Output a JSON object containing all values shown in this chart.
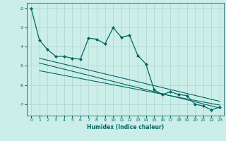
{
  "xlabel": "Humidex (Indice chaleur)",
  "background_color": "#cceee8",
  "grid_color": "#aad4ce",
  "line_color": "#006666",
  "xlim": [
    -0.5,
    23.5
  ],
  "ylim": [
    -7.6,
    -1.7
  ],
  "yticks": [
    -7,
    -6,
    -5,
    -4,
    -3,
    -2
  ],
  "xticks": [
    0,
    1,
    2,
    3,
    4,
    5,
    6,
    7,
    8,
    9,
    10,
    11,
    12,
    13,
    14,
    15,
    16,
    17,
    18,
    19,
    20,
    21,
    22,
    23
  ],
  "series1_x": [
    0,
    1,
    2,
    3,
    4,
    5,
    6,
    7,
    8,
    9,
    10,
    11,
    12,
    13,
    14,
    15,
    16,
    17,
    18,
    19,
    20,
    21,
    22,
    23
  ],
  "series1_y": [
    -2.0,
    -3.65,
    -4.15,
    -4.5,
    -4.5,
    -4.6,
    -4.65,
    -3.55,
    -3.6,
    -3.85,
    -3.0,
    -3.5,
    -3.4,
    -4.45,
    -4.9,
    -6.25,
    -6.5,
    -6.35,
    -6.5,
    -6.55,
    -7.0,
    -7.1,
    -7.3,
    -7.15
  ],
  "series2_x": [
    1,
    23
  ],
  "series2_y": [
    -4.85,
    -7.2
  ],
  "series3_x": [
    1,
    23
  ],
  "series3_y": [
    -4.6,
    -6.85
  ],
  "series4_x": [
    1,
    23
  ],
  "series4_y": [
    -5.25,
    -7.05
  ]
}
